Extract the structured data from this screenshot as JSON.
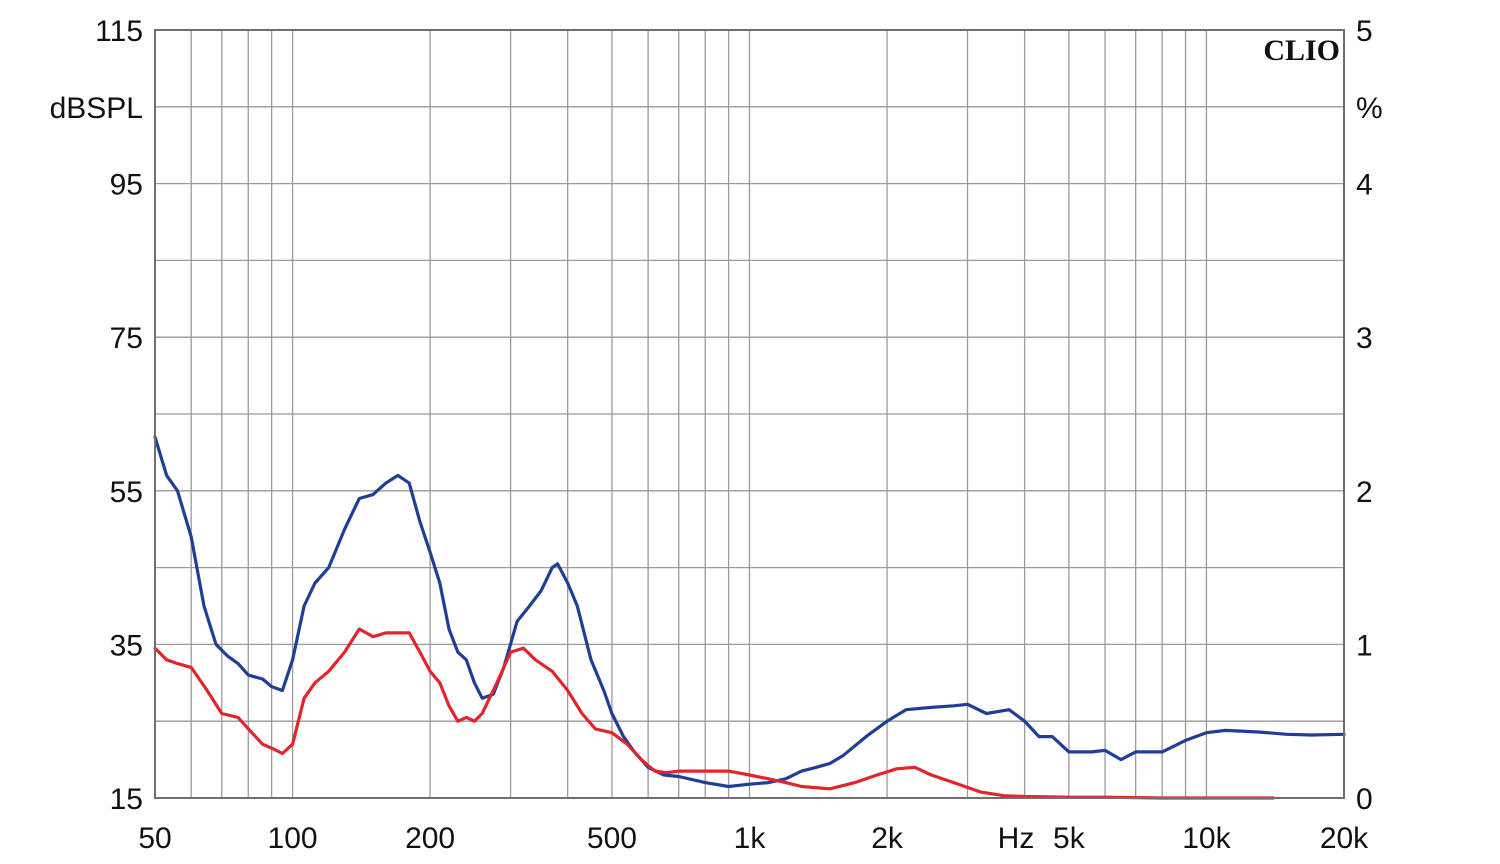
{
  "chart_data": {
    "type": "line",
    "brand": "CLIO",
    "x_unit": "Hz",
    "x_scale": "log",
    "xlim": [
      50,
      20000
    ],
    "x_tick_labels": [
      {
        "value": 50,
        "label": "50"
      },
      {
        "value": 100,
        "label": "100"
      },
      {
        "value": 200,
        "label": "200"
      },
      {
        "value": 500,
        "label": "500"
      },
      {
        "value": 1000,
        "label": "1k"
      },
      {
        "value": 2000,
        "label": "2k"
      },
      {
        "value": 5000,
        "label": "5k"
      },
      {
        "value": 10000,
        "label": "10k"
      },
      {
        "value": 20000,
        "label": "20k"
      }
    ],
    "y_left": {
      "unit": "dBSPL",
      "ylim": [
        15,
        115
      ],
      "tick_labels": [
        {
          "value": 115,
          "label": "115"
        },
        {
          "value": 95,
          "label": "95"
        },
        {
          "value": 75,
          "label": "75"
        },
        {
          "value": 55,
          "label": "55"
        },
        {
          "value": 35,
          "label": "35"
        },
        {
          "value": 15,
          "label": "15"
        }
      ]
    },
    "y_right": {
      "unit": "%",
      "ylim": [
        0,
        5
      ],
      "tick_labels": [
        {
          "value": 5,
          "label": "5"
        },
        {
          "value": 4,
          "label": "4"
        },
        {
          "value": 3,
          "label": "3"
        },
        {
          "value": 2,
          "label": "2"
        },
        {
          "value": 1,
          "label": "1"
        },
        {
          "value": 0,
          "label": "0"
        }
      ]
    },
    "grid": true,
    "series": [
      {
        "color": "#1f3f96",
        "axis": "left",
        "points": [
          [
            50,
            62
          ],
          [
            53,
            57
          ],
          [
            56,
            55
          ],
          [
            60,
            49
          ],
          [
            64,
            40
          ],
          [
            68,
            35
          ],
          [
            72,
            33.5
          ],
          [
            76,
            32.5
          ],
          [
            80,
            31
          ],
          [
            86,
            30.5
          ],
          [
            90,
            29.5
          ],
          [
            95,
            29
          ],
          [
            100,
            33
          ],
          [
            106,
            40
          ],
          [
            112,
            43
          ],
          [
            120,
            45
          ],
          [
            130,
            50
          ],
          [
            140,
            54
          ],
          [
            150,
            54.5
          ],
          [
            160,
            56
          ],
          [
            170,
            57
          ],
          [
            180,
            56
          ],
          [
            190,
            51
          ],
          [
            200,
            47
          ],
          [
            210,
            43
          ],
          [
            220,
            37
          ],
          [
            230,
            34
          ],
          [
            240,
            33
          ],
          [
            250,
            30
          ],
          [
            260,
            28
          ],
          [
            275,
            28.5
          ],
          [
            290,
            32
          ],
          [
            310,
            38
          ],
          [
            330,
            40
          ],
          [
            350,
            42
          ],
          [
            370,
            45
          ],
          [
            380,
            45.5
          ],
          [
            400,
            43
          ],
          [
            420,
            40
          ],
          [
            450,
            33
          ],
          [
            480,
            29
          ],
          [
            500,
            26
          ],
          [
            530,
            23
          ],
          [
            560,
            21
          ],
          [
            600,
            19
          ],
          [
            650,
            18
          ],
          [
            700,
            17.8
          ],
          [
            800,
            17
          ],
          [
            900,
            16.5
          ],
          [
            1000,
            16.8
          ],
          [
            1100,
            17
          ],
          [
            1200,
            17.5
          ],
          [
            1300,
            18.5
          ],
          [
            1400,
            19
          ],
          [
            1500,
            19.5
          ],
          [
            1600,
            20.5
          ],
          [
            1800,
            23
          ],
          [
            2000,
            25
          ],
          [
            2200,
            26.5
          ],
          [
            2500,
            26.8
          ],
          [
            2800,
            27
          ],
          [
            3000,
            27.2
          ],
          [
            3300,
            26
          ],
          [
            3700,
            26.5
          ],
          [
            4000,
            25
          ],
          [
            4300,
            23
          ],
          [
            4600,
            23
          ],
          [
            5000,
            21
          ],
          [
            5600,
            21
          ],
          [
            6000,
            21.2
          ],
          [
            6500,
            20
          ],
          [
            7000,
            21
          ],
          [
            8000,
            21
          ],
          [
            9000,
            22.5
          ],
          [
            10000,
            23.5
          ],
          [
            11000,
            23.8
          ],
          [
            13000,
            23.6
          ],
          [
            15000,
            23.3
          ],
          [
            17000,
            23.2
          ],
          [
            20000,
            23.3
          ]
        ]
      },
      {
        "color": "#e0262a",
        "axis": "left",
        "points": [
          [
            50,
            34.5
          ],
          [
            53,
            33
          ],
          [
            56,
            32.5
          ],
          [
            60,
            32
          ],
          [
            65,
            29
          ],
          [
            70,
            26
          ],
          [
            76,
            25.5
          ],
          [
            80,
            24
          ],
          [
            86,
            22
          ],
          [
            90,
            21.5
          ],
          [
            95,
            20.8
          ],
          [
            100,
            22
          ],
          [
            106,
            28
          ],
          [
            112,
            30
          ],
          [
            120,
            31.5
          ],
          [
            130,
            34
          ],
          [
            140,
            37
          ],
          [
            150,
            36
          ],
          [
            160,
            36.5
          ],
          [
            170,
            36.5
          ],
          [
            180,
            36.5
          ],
          [
            190,
            34
          ],
          [
            200,
            31.5
          ],
          [
            210,
            30
          ],
          [
            220,
            27
          ],
          [
            230,
            25
          ],
          [
            240,
            25.5
          ],
          [
            250,
            25
          ],
          [
            260,
            26
          ],
          [
            280,
            30
          ],
          [
            300,
            34
          ],
          [
            320,
            34.5
          ],
          [
            340,
            33
          ],
          [
            370,
            31.5
          ],
          [
            400,
            29
          ],
          [
            430,
            26
          ],
          [
            460,
            24
          ],
          [
            500,
            23.5
          ],
          [
            540,
            22
          ],
          [
            580,
            20
          ],
          [
            620,
            18.5
          ],
          [
            660,
            18.3
          ],
          [
            700,
            18.5
          ],
          [
            800,
            18.5
          ],
          [
            900,
            18.5
          ],
          [
            1000,
            18
          ],
          [
            1100,
            17.5
          ],
          [
            1200,
            17
          ],
          [
            1300,
            16.5
          ],
          [
            1500,
            16.2
          ],
          [
            1700,
            17
          ],
          [
            1900,
            18
          ],
          [
            2100,
            18.8
          ],
          [
            2300,
            19
          ],
          [
            2500,
            18
          ],
          [
            2800,
            17
          ],
          [
            3200,
            15.8
          ],
          [
            3600,
            15.3
          ],
          [
            4000,
            15.2
          ],
          [
            5000,
            15.1
          ],
          [
            6000,
            15.1
          ],
          [
            8000,
            15
          ],
          [
            10000,
            15
          ],
          [
            14000,
            15
          ]
        ]
      }
    ]
  }
}
